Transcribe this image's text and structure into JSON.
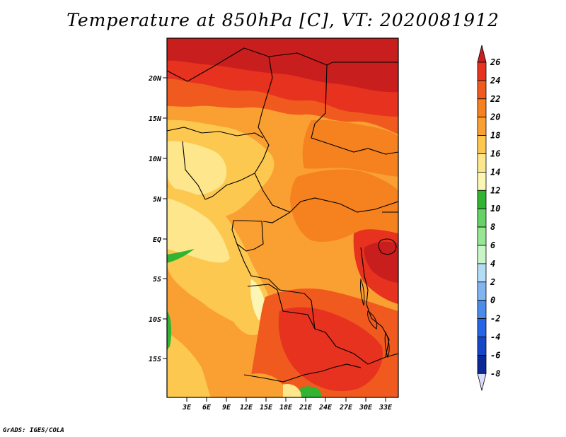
{
  "title": "Temperature at 850hPa [C], VT: 2020081912",
  "footer": "GrADS: IGES/COLA",
  "map": {
    "lat_labels": [
      "20N",
      "15N",
      "10N",
      "5N",
      "EQ",
      "5S",
      "10S",
      "15S"
    ],
    "lon_labels": [
      "3E",
      "6E",
      "9E",
      "12E",
      "15E",
      "18E",
      "21E",
      "24E",
      "27E",
      "30E",
      "33E"
    ]
  },
  "colorbar": {
    "labels": [
      "26",
      "24",
      "22",
      "20",
      "18",
      "16",
      "14",
      "12",
      "10",
      "8",
      "6",
      "4",
      "2",
      "0",
      "-2",
      "-4",
      "-6",
      "-8"
    ],
    "colors": [
      "#c81e1e",
      "#e6321e",
      "#f05a1e",
      "#f5821e",
      "#faa032",
      "#fcc850",
      "#fde68c",
      "#fdf5b4",
      "#32b432",
      "#64d264",
      "#96e696",
      "#c8f5c8",
      "#b4dcf5",
      "#82b4f0",
      "#4b8ceb",
      "#2864e6",
      "#1446c8",
      "#0a2896",
      "#000064"
    ]
  }
}
